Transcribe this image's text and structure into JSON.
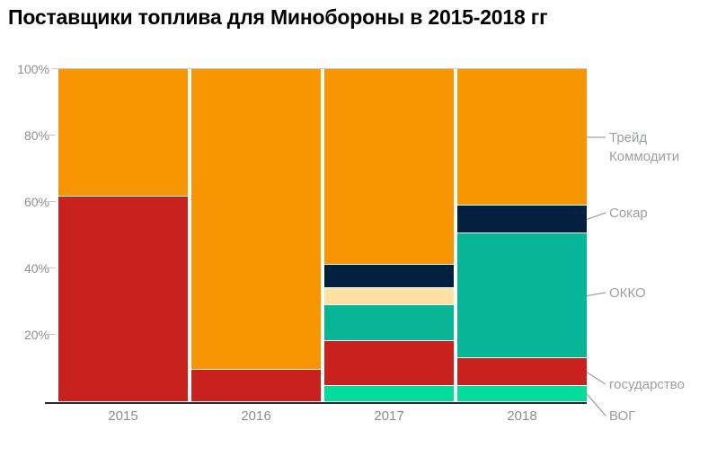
{
  "title": "Поставщики топлива для Минобороны в 2015-2018 гг",
  "chart_data": {
    "type": "bar",
    "variant": "stacked-100percent-column",
    "title": "Поставщики топлива для Минобороны в 2015-2018 гг",
    "categories": [
      "2015",
      "2016",
      "2017",
      "2018"
    ],
    "unit": "%",
    "ylim": [
      0,
      100
    ],
    "y_ticks": [
      {
        "label": "20%",
        "value": 20
      },
      {
        "label": "40%",
        "value": 40
      },
      {
        "label": "60%",
        "value": 60
      },
      {
        "label": "80%",
        "value": 80
      },
      {
        "label": "100%",
        "value": 100
      }
    ],
    "grid": "top-line-and-left-ticks",
    "legend_position": "right-callouts",
    "series": [
      {
        "name": "ВОГ",
        "color": "#02DB9B",
        "values": [
          0,
          0,
          4.5,
          4.5
        ]
      },
      {
        "name": "государство",
        "color": "#C9211E",
        "values": [
          61.5,
          9.5,
          13.5,
          8.5
        ]
      },
      {
        "name": "ОККО",
        "color": "#09B597",
        "values": [
          0,
          0,
          11,
          37.5
        ]
      },
      {
        "name": "",
        "color": "#FFE2A3",
        "values": [
          0,
          0,
          5,
          0
        ]
      },
      {
        "name": "Сокар",
        "color": "#022040",
        "values": [
          0,
          0,
          7,
          8.5
        ]
      },
      {
        "name": "Трейд Коммодити",
        "color": "#F79502",
        "values": [
          38.5,
          90.5,
          59,
          41
        ]
      }
    ]
  },
  "legend": {
    "items": [
      {
        "series": "Трейд Коммодити",
        "lines": [
          "Трейд",
          "Коммодити"
        ]
      },
      {
        "series": "Сокар",
        "lines": [
          "Сокар"
        ]
      },
      {
        "series": "ОККО",
        "lines": [
          "ОККО"
        ]
      },
      {
        "series": "государство",
        "lines": [
          "государство"
        ]
      },
      {
        "series": "ВОГ",
        "lines": [
          "ВОГ"
        ]
      }
    ]
  },
  "colors": {
    "background": "#FFFFFF",
    "title_text": "#000000",
    "axis_text": "#909090",
    "category_text": "#8C8C8C",
    "legend_text": "#9B9FA3",
    "leader_line": "#8A8A8A",
    "gridline": "#C9C9C9",
    "axis_line": "#2B2B2B",
    "segment_separator": "#FFFFFF"
  }
}
